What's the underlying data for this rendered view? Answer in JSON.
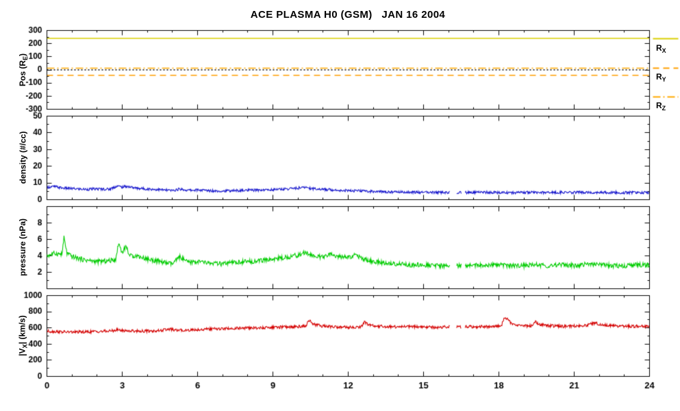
{
  "title": "ACE PLASMA H0 (GSM)   JAN 16 2004",
  "colors": {
    "background": "#ffffff",
    "axis": "#000000",
    "rx": "#d9cf00",
    "ry": "#ff9f00",
    "rz": "#ffaa00",
    "zero_line": "#000000",
    "density": "#1515cc",
    "pressure": "#00cc00",
    "velocity": "#d40000"
  },
  "x_axis": {
    "min": 0,
    "max": 24,
    "major_ticks": [
      0,
      3,
      6,
      9,
      12,
      15,
      18,
      21,
      24
    ],
    "minor_step": 1
  },
  "ylabels": {
    "position": {
      "pre": "Pos (R",
      "sub": "E",
      "post": ")"
    },
    "density": {
      "pre": "density (#/cc)",
      "sub": "",
      "post": ""
    },
    "pressure": {
      "pre": "pressure (nPa)",
      "sub": "",
      "post": ""
    },
    "velocity": {
      "pre": "|V",
      "sub": "X",
      "post": "| (km/s)"
    }
  },
  "legend": {
    "entries": [
      {
        "id": "rx",
        "main": "R",
        "sub": "X",
        "style": "solid",
        "color": "#d9cf00"
      },
      {
        "id": "ry",
        "main": "R",
        "sub": "Y",
        "style": "dashed",
        "color": "#ff9f00"
      },
      {
        "id": "rz",
        "main": "R",
        "sub": "Z",
        "style": "dashdot",
        "color": "#ffaa00"
      }
    ]
  },
  "chart_data": [
    {
      "type": "line",
      "panel": "position",
      "ylabel": "Pos (R_E)",
      "ylim": [
        -300,
        300
      ],
      "yticks": [
        -300,
        -200,
        -100,
        0,
        100,
        200,
        300
      ],
      "minor_step": 50,
      "series": [
        {
          "name": "R_X",
          "style": "solid",
          "color": "#d9cf00",
          "constant": 240
        },
        {
          "name": "R_Y",
          "style": "dashed",
          "color": "#ff9f00",
          "constant": -42
        },
        {
          "name": "R_Z",
          "style": "dashdot",
          "color": "#ffaa00",
          "constant": 13
        },
        {
          "name": "zero-reference",
          "style": "dotted",
          "color": "#000000",
          "constant": 0
        }
      ]
    },
    {
      "type": "line",
      "panel": "density",
      "ylabel": "density (#/cc)",
      "ylim": [
        0,
        50
      ],
      "yticks": [
        0,
        10,
        20,
        30,
        40,
        50
      ],
      "minor_step": 5,
      "gaps": [
        [
          16.05,
          16.3
        ],
        [
          16.5,
          16.65
        ]
      ],
      "series": [
        {
          "name": "proton density",
          "color": "#1515cc",
          "noise": 0.8,
          "points": [
            [
              0,
              7.5
            ],
            [
              0.3,
              7.8
            ],
            [
              0.6,
              7.0
            ],
            [
              1,
              6.6
            ],
            [
              1.5,
              6.2
            ],
            [
              2,
              6.4
            ],
            [
              2.5,
              6.3
            ],
            [
              2.8,
              8.2
            ],
            [
              3,
              7.5
            ],
            [
              3.2,
              8.0
            ],
            [
              3.5,
              7.0
            ],
            [
              4,
              6.4
            ],
            [
              4.5,
              6.0
            ],
            [
              5,
              5.4
            ],
            [
              5.3,
              6.4
            ],
            [
              5.6,
              5.6
            ],
            [
              6,
              5.8
            ],
            [
              6.5,
              5.4
            ],
            [
              7,
              5.2
            ],
            [
              7.5,
              5.4
            ],
            [
              8,
              5.6
            ],
            [
              8.5,
              5.8
            ],
            [
              9,
              6.0
            ],
            [
              9.5,
              6.4
            ],
            [
              10,
              7.0
            ],
            [
              10.3,
              7.4
            ],
            [
              10.6,
              6.6
            ],
            [
              11,
              6.2
            ],
            [
              11.5,
              5.8
            ],
            [
              12,
              5.4
            ],
            [
              12.5,
              5.2
            ],
            [
              13,
              4.9
            ],
            [
              13.5,
              4.7
            ],
            [
              14,
              4.6
            ],
            [
              14.5,
              4.5
            ],
            [
              15,
              4.4
            ],
            [
              15.5,
              4.3
            ],
            [
              16,
              4.3
            ],
            [
              16.7,
              4.3
            ],
            [
              17,
              4.3
            ],
            [
              17.5,
              4.4
            ],
            [
              18,
              4.3
            ],
            [
              18.5,
              4.2
            ],
            [
              19,
              4.4
            ],
            [
              19.5,
              4.3
            ],
            [
              20,
              4.2
            ],
            [
              20.5,
              4.4
            ],
            [
              21,
              4.3
            ],
            [
              21.5,
              4.5
            ],
            [
              22,
              4.4
            ],
            [
              22.5,
              4.3
            ],
            [
              23,
              4.2
            ],
            [
              23.5,
              4.3
            ],
            [
              24,
              4.3
            ]
          ]
        }
      ]
    },
    {
      "type": "line",
      "panel": "pressure",
      "ylabel": "pressure (nPa)",
      "ylim": [
        0,
        10
      ],
      "yticks": [
        2,
        4,
        6,
        8
      ],
      "minor_step": 1,
      "gaps": [
        [
          16.05,
          16.3
        ],
        [
          16.5,
          16.65
        ]
      ],
      "series": [
        {
          "name": "flow pressure",
          "color": "#00cc00",
          "noise": 0.28,
          "points": [
            [
              0,
              4.0
            ],
            [
              0.3,
              4.3
            ],
            [
              0.6,
              4.2
            ],
            [
              0.68,
              6.2
            ],
            [
              0.8,
              4.3
            ],
            [
              1,
              3.9
            ],
            [
              1.5,
              3.5
            ],
            [
              2,
              3.3
            ],
            [
              2.5,
              3.4
            ],
            [
              2.75,
              3.6
            ],
            [
              2.85,
              5.6
            ],
            [
              3,
              4.4
            ],
            [
              3.15,
              5.2
            ],
            [
              3.3,
              4.0
            ],
            [
              3.6,
              4.0
            ],
            [
              4,
              3.6
            ],
            [
              4.5,
              3.3
            ],
            [
              5,
              3.0
            ],
            [
              5.3,
              3.9
            ],
            [
              5.6,
              3.2
            ],
            [
              6,
              3.3
            ],
            [
              6.5,
              3.1
            ],
            [
              7,
              3.0
            ],
            [
              7.5,
              3.2
            ],
            [
              8,
              3.3
            ],
            [
              8.5,
              3.4
            ],
            [
              9,
              3.6
            ],
            [
              9.5,
              3.8
            ],
            [
              10,
              4.1
            ],
            [
              10.3,
              4.4
            ],
            [
              10.6,
              4.0
            ],
            [
              11,
              3.8
            ],
            [
              11.3,
              4.2
            ],
            [
              11.6,
              3.9
            ],
            [
              12,
              3.8
            ],
            [
              12.3,
              4.1
            ],
            [
              12.6,
              3.6
            ],
            [
              13,
              3.3
            ],
            [
              13.5,
              3.1
            ],
            [
              14,
              3.0
            ],
            [
              14.5,
              2.9
            ],
            [
              15,
              2.9
            ],
            [
              15.5,
              2.8
            ],
            [
              16,
              2.8
            ],
            [
              16.7,
              2.8
            ],
            [
              17,
              2.9
            ],
            [
              17.5,
              2.8
            ],
            [
              18,
              2.9
            ],
            [
              18.5,
              2.8
            ],
            [
              19,
              2.8
            ],
            [
              19.5,
              2.9
            ],
            [
              20,
              2.8
            ],
            [
              20.5,
              2.9
            ],
            [
              21,
              2.8
            ],
            [
              21.5,
              3.0
            ],
            [
              22,
              2.9
            ],
            [
              22.5,
              2.8
            ],
            [
              23,
              2.8
            ],
            [
              23.5,
              2.9
            ],
            [
              24,
              2.9
            ]
          ]
        }
      ]
    },
    {
      "type": "line",
      "panel": "velocity",
      "ylabel": "|V_X| (km/s)",
      "ylim": [
        0,
        1000
      ],
      "yticks": [
        0,
        200,
        400,
        600,
        800,
        1000
      ],
      "minor_step": 100,
      "show_x_labels": true,
      "gaps": [
        [
          16.05,
          16.3
        ],
        [
          16.5,
          16.65
        ]
      ],
      "series": [
        {
          "name": "|Vx| flow speed",
          "color": "#d40000",
          "noise": 18,
          "points": [
            [
              0,
              560
            ],
            [
              0.5,
              552
            ],
            [
              1,
              548
            ],
            [
              1.5,
              550
            ],
            [
              2,
              556
            ],
            [
              2.5,
              560
            ],
            [
              2.8,
              576
            ],
            [
              3,
              568
            ],
            [
              3.5,
              562
            ],
            [
              4,
              560
            ],
            [
              4.5,
              566
            ],
            [
              4.9,
              586
            ],
            [
              5.1,
              570
            ],
            [
              5.5,
              572
            ],
            [
              6,
              578
            ],
            [
              6.5,
              586
            ],
            [
              7,
              590
            ],
            [
              7.5,
              595
            ],
            [
              8,
              598
            ],
            [
              8.5,
              600
            ],
            [
              9,
              606
            ],
            [
              9.5,
              612
            ],
            [
              10,
              618
            ],
            [
              10.3,
              622
            ],
            [
              10.45,
              700
            ],
            [
              10.6,
              645
            ],
            [
              11,
              622
            ],
            [
              11.5,
              612
            ],
            [
              12,
              608
            ],
            [
              12.5,
              612
            ],
            [
              12.65,
              670
            ],
            [
              12.8,
              640
            ],
            [
              13,
              624
            ],
            [
              13.5,
              616
            ],
            [
              14,
              612
            ],
            [
              14.5,
              616
            ],
            [
              15,
              612
            ],
            [
              15.5,
              608
            ],
            [
              16,
              612
            ],
            [
              16.7,
              616
            ],
            [
              17,
              612
            ],
            [
              17.8,
              618
            ],
            [
              18.1,
              626
            ],
            [
              18.22,
              735
            ],
            [
              18.35,
              706
            ],
            [
              18.5,
              650
            ],
            [
              19,
              624
            ],
            [
              19.35,
              626
            ],
            [
              19.45,
              682
            ],
            [
              19.6,
              648
            ],
            [
              20,
              626
            ],
            [
              20.5,
              618
            ],
            [
              21,
              624
            ],
            [
              21.5,
              632
            ],
            [
              21.85,
              664
            ],
            [
              22,
              642
            ],
            [
              22.5,
              628
            ],
            [
              23,
              622
            ],
            [
              23.5,
              618
            ],
            [
              24,
              622
            ]
          ]
        }
      ]
    }
  ]
}
